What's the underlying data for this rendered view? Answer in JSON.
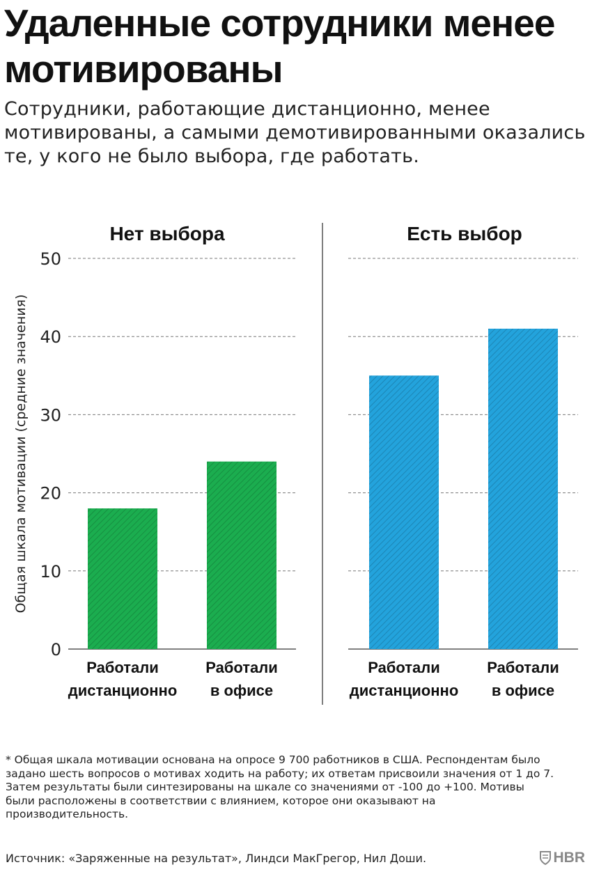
{
  "title": "Удаленные сотрудники менее мотивированы",
  "subtitle": "Сотрудники, работающие дистанционно, менее мотивированы, а самыми демотивированными оказались те, у кого не было выбора, где работать.",
  "chart_data": {
    "type": "bar",
    "ylabel": "Общая шкала мотивации (средние значения)",
    "ylim": [
      0,
      50
    ],
    "yticks": [
      0,
      10,
      20,
      30,
      40,
      50
    ],
    "grid": true,
    "panels": [
      {
        "title": "Нет выбора",
        "color": "#1bad4f",
        "categories": [
          [
            "Работали",
            "дистанционно"
          ],
          [
            "Работали",
            "в офисе"
          ]
        ],
        "values": [
          18,
          24
        ]
      },
      {
        "title": "Есть выбор",
        "color": "#23a3dc",
        "categories": [
          [
            "Работали",
            "дистанционно"
          ],
          [
            "Работали",
            "в офисе"
          ]
        ],
        "values": [
          35,
          41
        ]
      }
    ]
  },
  "footnote": "* Общая шкала мотивации основана на опросе 9 700 работников в США. Респондентам было задано шесть вопросов о мотивах ходить на работу; их ответам присвоили значения от 1 до 7. Затем результаты были синтезированы на шкале со значениями от -100 до +100. Мотивы были расположены в соответствии с влиянием, которое они оказывают на производительность.",
  "source": "Источник: «Заряженные на результат», Линдси МакГрегор, Нил Доши.",
  "logo": {
    "text": "HBR",
    "icon": "shield-icon"
  }
}
